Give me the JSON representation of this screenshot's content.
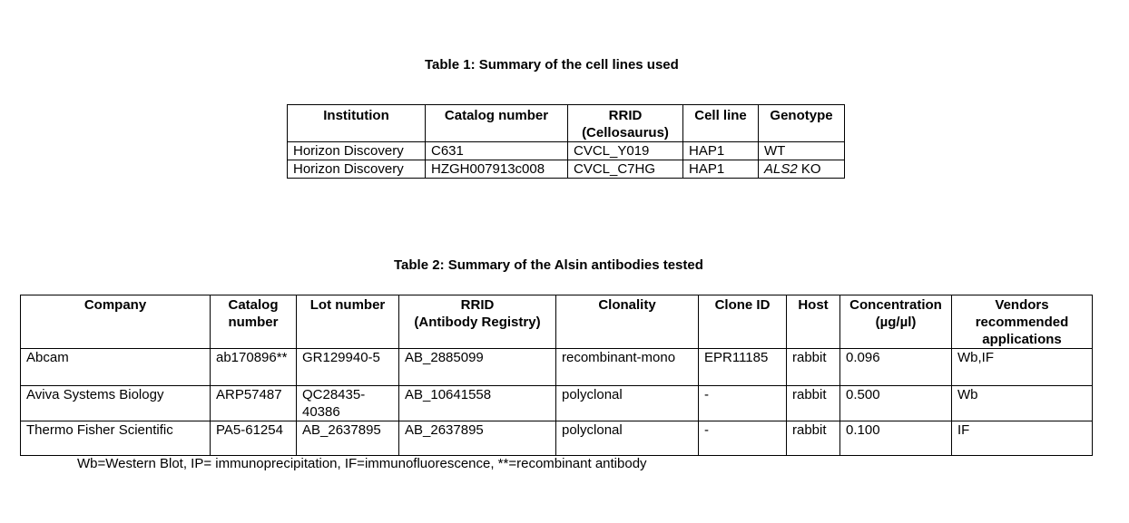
{
  "table1": {
    "caption": "Table 1: Summary of the cell lines used",
    "headers": {
      "institution": "Institution",
      "catalog": "Catalog number",
      "rrid_line1": "RRID",
      "rrid_line2": "(Cellosaurus)",
      "cell_line": "Cell line",
      "genotype": "Genotype"
    },
    "rows": [
      {
        "institution": "Horizon Discovery",
        "catalog": "C631",
        "rrid": "CVCL_Y019",
        "cell_line": "HAP1",
        "genotype_gene": "",
        "genotype_rest": "WT"
      },
      {
        "institution": "Horizon Discovery",
        "catalog": "HZGH007913c008",
        "rrid": "CVCL_C7HG",
        "cell_line": "HAP1",
        "genotype_gene": "ALS2",
        "genotype_rest": " KO"
      }
    ]
  },
  "table2": {
    "caption": "Table 2: Summary of the Alsin antibodies tested",
    "headers": {
      "company": "Company",
      "catalog_line1": "Catalog",
      "catalog_line2": "number",
      "lot": "Lot number",
      "rrid_line1": "RRID",
      "rrid_line2": "(Antibody Registry)",
      "clonality": "Clonality",
      "clone_id": "Clone ID",
      "host": "Host",
      "conc_line1": "Concentration",
      "conc_line2": "(µg/µl)",
      "vendor_line1": "Vendors",
      "vendor_line2": "recommended",
      "vendor_line3": "applications"
    },
    "rows": [
      {
        "company": "Abcam",
        "catalog": "ab170896**",
        "lot_line1": "GR129940-5",
        "lot_line2": "",
        "rrid": "AB_2885099",
        "clonality": "recombinant-mono",
        "clone_id": "EPR11185",
        "host": "rabbit",
        "concentration": "0.096",
        "applications": "Wb,IF"
      },
      {
        "company": "Aviva Systems Biology",
        "catalog": "ARP57487",
        "lot_line1": "QC28435-",
        "lot_line2": "40386",
        "rrid": "AB_10641558",
        "clonality": "polyclonal",
        "clone_id": "-",
        "host": "rabbit",
        "concentration": "0.500",
        "applications": "Wb"
      },
      {
        "company": "Thermo Fisher Scientific",
        "catalog": "PA5-61254",
        "lot_line1": "AB_2637895",
        "lot_line2": "",
        "rrid": "AB_2637895",
        "clonality": "polyclonal",
        "clone_id": "-",
        "host": "rabbit",
        "concentration": "0.100",
        "applications": "IF"
      }
    ]
  },
  "footnote": "Wb=Western Blot, IP= immunoprecipitation, IF=immunofluorescence, **=recombinant antibody"
}
